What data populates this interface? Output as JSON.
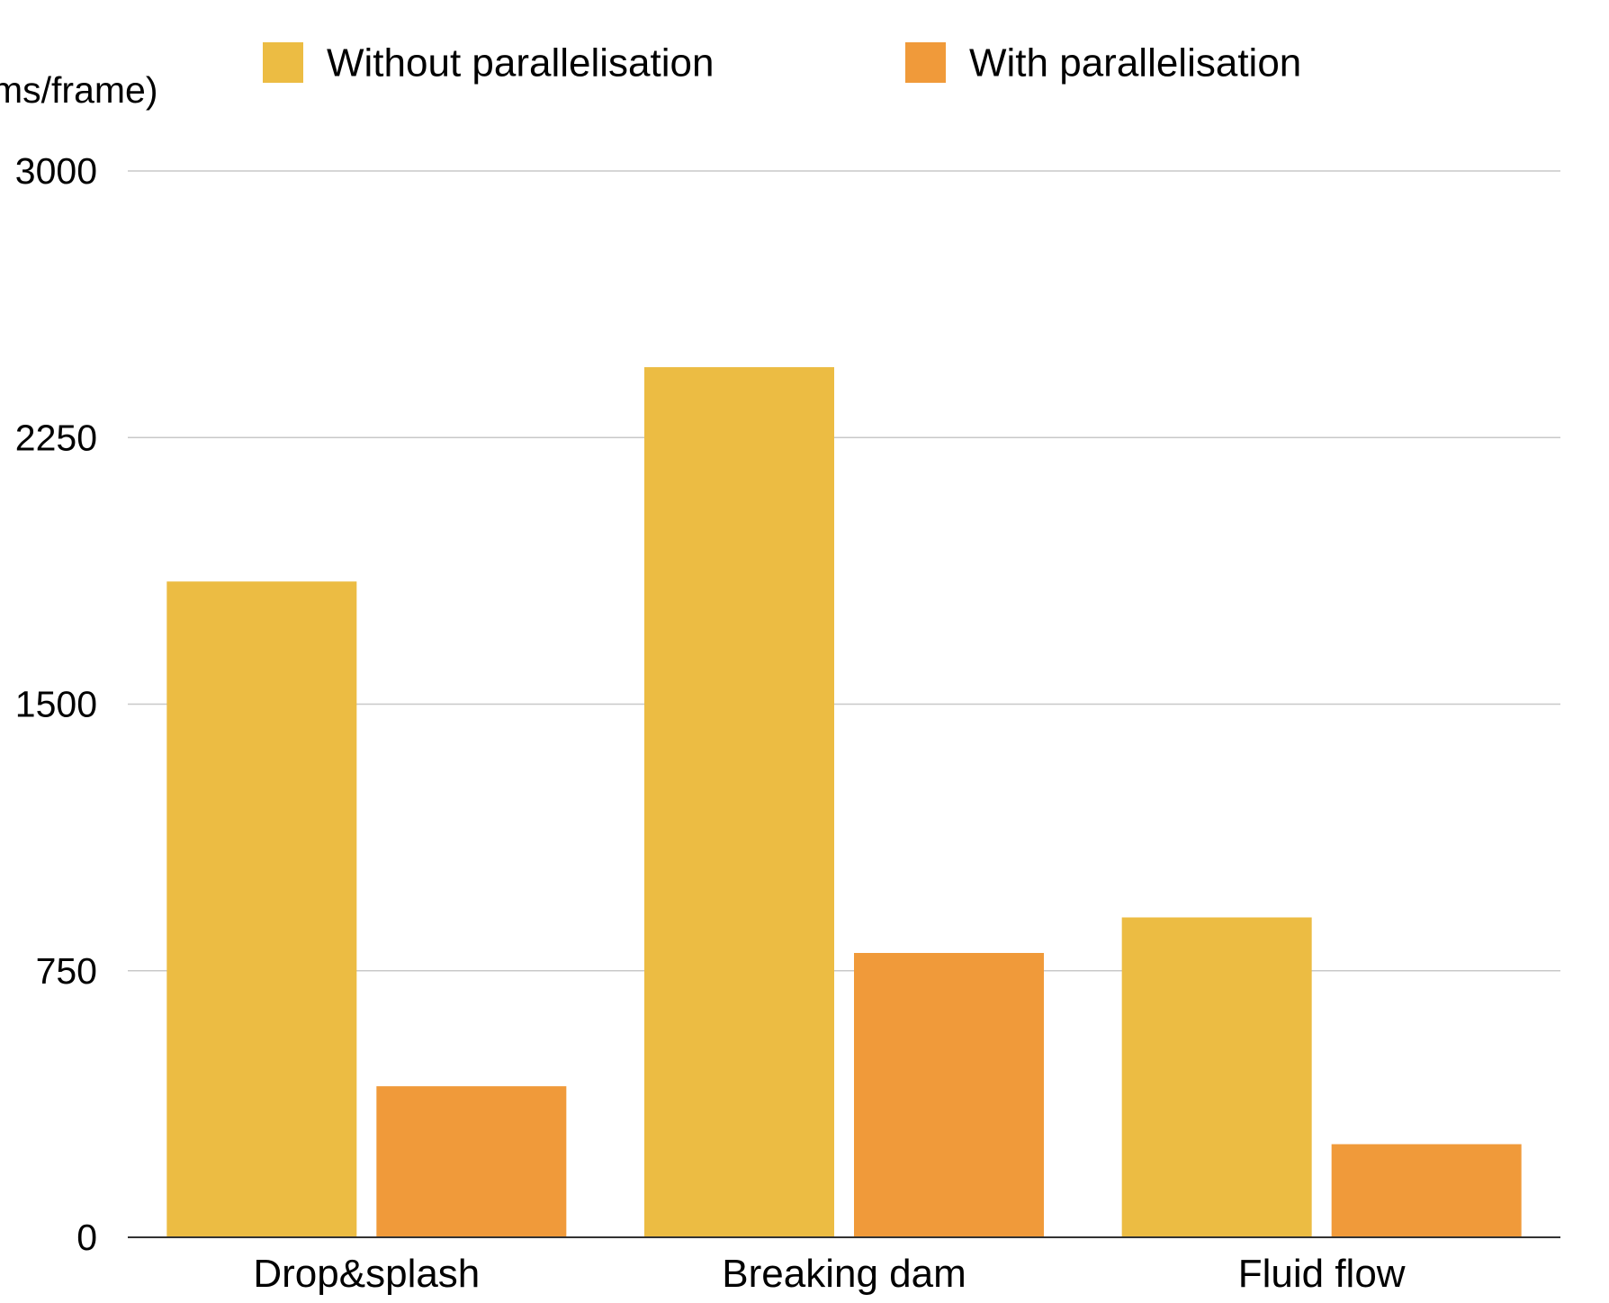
{
  "chart_data": {
    "type": "bar",
    "title": "",
    "xlabel": "",
    "ylabel": "ms/frame)",
    "ylim": [
      0,
      3000
    ],
    "yticks": [
      0,
      750,
      1500,
      2250,
      3000
    ],
    "grid": true,
    "legend_position": "top",
    "categories": [
      "Drop&splash",
      "Breaking dam",
      "Fluid flow"
    ],
    "series": [
      {
        "name": "Without parallelisation",
        "color": "#ECBC43",
        "values": [
          1845,
          2448,
          900
        ]
      },
      {
        "name": "With parallelisation",
        "color": "#F09A3A",
        "values": [
          425,
          800,
          262
        ]
      }
    ]
  }
}
